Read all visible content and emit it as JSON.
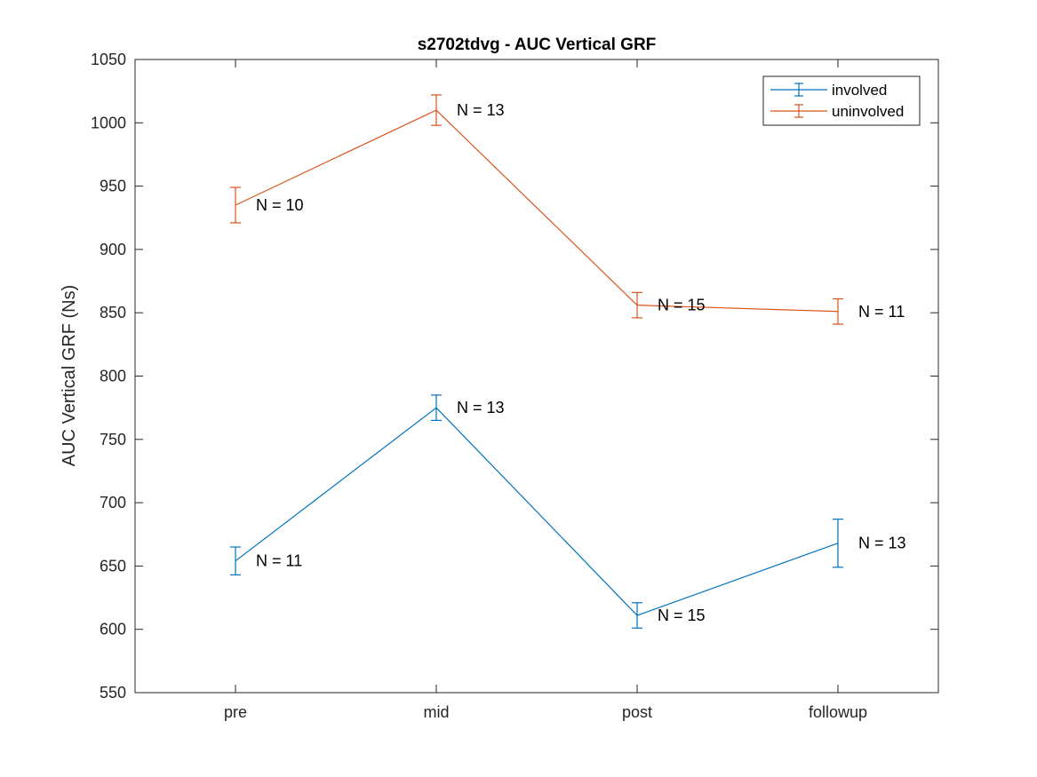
{
  "chart_data": {
    "type": "line",
    "title": "s2702tdvg - AUC Vertical GRF",
    "xlabel": "",
    "ylabel": "AUC Vertical GRF (Ns)",
    "categories": [
      "pre",
      "mid",
      "post",
      "followup"
    ],
    "ylim": [
      550,
      1050
    ],
    "yticks": [
      550,
      600,
      650,
      700,
      750,
      800,
      850,
      900,
      950,
      1000,
      1050
    ],
    "grid": false,
    "legend_position": "top-right",
    "series": [
      {
        "name": "involved",
        "color": "#0072BD",
        "values": [
          654,
          775,
          611,
          668
        ],
        "error": [
          11,
          10,
          10,
          19
        ],
        "n_labels": [
          "N = 11",
          "N = 13",
          "N = 15",
          "N = 13"
        ]
      },
      {
        "name": "uninvolved",
        "color": "#D95319",
        "values": [
          935,
          1010,
          856,
          851
        ],
        "error": [
          14,
          12,
          10,
          10
        ],
        "n_labels": [
          "N = 10",
          "N = 13",
          "N = 15",
          "N = 11"
        ]
      }
    ]
  }
}
